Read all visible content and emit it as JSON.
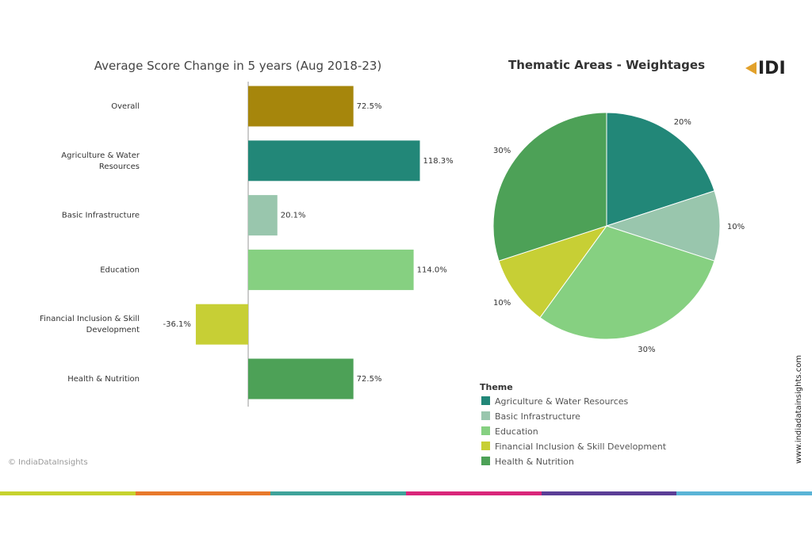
{
  "chart_data": [
    {
      "type": "bar",
      "orientation": "horizontal",
      "title": "Average Score Change in 5 years (Aug 2018-23)",
      "categories": [
        "Overall",
        "Agriculture & Water Resources",
        "Basic Infrastructure",
        "Education",
        "Financial Inclusion & Skill Development",
        "Health & Nutrition"
      ],
      "category_lines": [
        [
          "Overall"
        ],
        [
          "Agriculture & Water",
          "Resources"
        ],
        [
          "Basic Infrastructure"
        ],
        [
          "Education"
        ],
        [
          "Financial Inclusion & Skill",
          "Development"
        ],
        [
          "Health & Nutrition"
        ]
      ],
      "values": [
        72.5,
        118.3,
        20.1,
        114.0,
        -36.1,
        72.5
      ],
      "value_labels": [
        "72.5%",
        "118.3%",
        "20.1%",
        "114.0%",
        "-36.1%",
        "72.5%"
      ],
      "colors": [
        "#a6860c",
        "#228778",
        "#99c6ad",
        "#86d081",
        "#c7cf35",
        "#4da157"
      ],
      "xlim": [
        -55,
        150
      ],
      "grid": false
    },
    {
      "type": "pie",
      "title": "Thematic Areas - Weightages",
      "slices": [
        {
          "label": "Agriculture & Water Resources",
          "value": 20,
          "value_label": "20%",
          "color": "#228778"
        },
        {
          "label": "Basic Infrastructure",
          "value": 10,
          "value_label": "10%",
          "color": "#99c6ad"
        },
        {
          "label": "Education",
          "value": 30,
          "value_label": "30%",
          "color": "#86d081"
        },
        {
          "label": "Financial Inclusion & Skill Development",
          "value": 10,
          "value_label": "10%",
          "color": "#c7cf35"
        },
        {
          "label": "Health & Nutrition",
          "value": 30,
          "value_label": "30%",
          "color": "#4da157"
        }
      ],
      "legend_title": "Theme",
      "legend_placement": "bottom"
    }
  ],
  "branding": {
    "logo_text": "IDI",
    "copyright": "© IndiaDataInsights",
    "website": "www.indiadatainsights.com",
    "stripe_colors": [
      "#c6d22e",
      "#e8792b",
      "#3fa39a",
      "#d9267a",
      "#5b3e96",
      "#5ab4d6"
    ]
  }
}
